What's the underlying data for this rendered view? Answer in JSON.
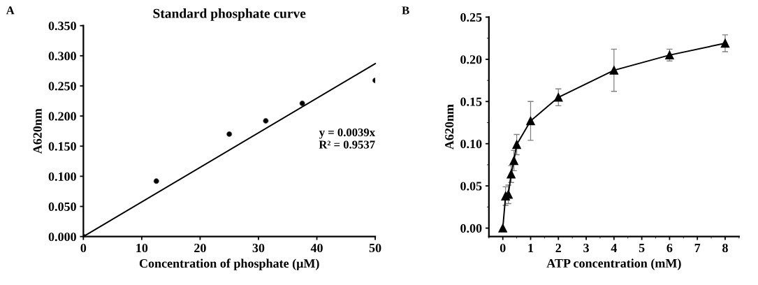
{
  "chart_data": [
    {
      "type": "scatter",
      "title": "Standard phosphate curve",
      "xlabel": "Concentration of phosphate (μM)",
      "ylabel": "A620nm",
      "series": [
        {
          "type": "scatter",
          "color": "#000000",
          "x": [
            0,
            12.5,
            25,
            31.25,
            37.5,
            50
          ],
          "values": [
            0,
            0.092,
            0.17,
            0.192,
            0.221,
            0.259
          ]
        },
        {
          "type": "line",
          "color": "#000000",
          "x": [
            0,
            50
          ],
          "values": [
            0,
            0.287
          ]
        }
      ],
      "xlim": [
        0,
        50
      ],
      "ylim": [
        0,
        0.35
      ],
      "xticks": [
        0,
        10,
        20,
        30,
        40,
        50
      ],
      "yticks": [
        {
          "value": 0,
          "label": "0.000"
        },
        {
          "value": 0.05,
          "label": "0.050"
        },
        {
          "value": 0.1,
          "label": "0.100"
        },
        {
          "value": 0.15,
          "label": "0.150"
        },
        {
          "value": 0.2,
          "label": "0.200"
        },
        {
          "value": 0.25,
          "label": "0.250"
        },
        {
          "value": 0.3,
          "label": "0.300"
        },
        {
          "value": 0.35,
          "label": "0.350"
        }
      ],
      "grid": false,
      "annotations": [
        "A",
        "y = 0.0039x\nR² = 0.9537"
      ]
    },
    {
      "type": "line",
      "xlabel": "ATP concentration (mM)",
      "ylabel": "A620nm",
      "series": [
        {
          "color": "#000000",
          "x": [
            0,
            0.1,
            0.2,
            0.3,
            0.4,
            0.5,
            1,
            2,
            4,
            6,
            8
          ],
          "values": [
            0,
            0.038,
            0.04,
            0.064,
            0.08,
            0.099,
            0.127,
            0.155,
            0.187,
            0.205,
            0.219
          ],
          "errors": [
            null,
            0.011,
            0.011,
            0.01,
            0.012,
            0.012,
            0.023,
            0.01,
            0.025,
            0.007,
            0.01
          ]
        }
      ],
      "xlim": [
        -0.5,
        8.5
      ],
      "ylim": [
        -0.01,
        0.25
      ],
      "xticks": [
        0,
        1,
        2,
        3,
        4,
        5,
        6,
        7,
        8
      ],
      "yticks": [
        {
          "value": 0,
          "label": "0.00"
        },
        {
          "value": 0.05,
          "label": "0.05"
        },
        {
          "value": 0.1,
          "label": "0.10"
        },
        {
          "value": 0.15,
          "label": "0.15"
        },
        {
          "value": 0.2,
          "label": "0.20"
        },
        {
          "value": 0.25,
          "label": "0.25"
        }
      ],
      "marker": "triangle",
      "line_style": "solid",
      "grid": false,
      "annotations": [
        "B"
      ]
    }
  ]
}
